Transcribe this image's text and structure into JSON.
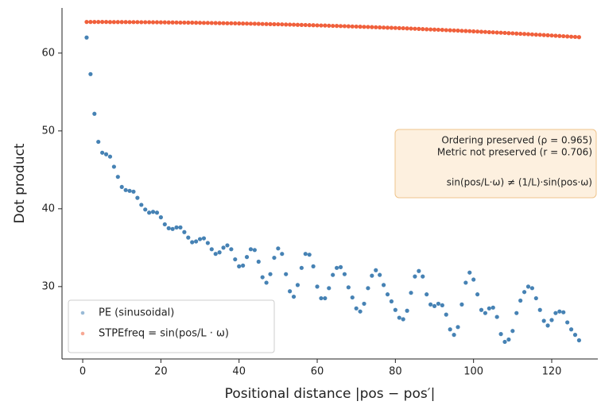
{
  "chart_data": {
    "type": "scatter",
    "xlabel": "Positional distance  |pos − pos′|",
    "ylabel": "Dot product",
    "xlim": [
      -5.3,
      131.8
    ],
    "ylim": [
      20.7,
      65.8
    ],
    "xticks": [
      0,
      20,
      40,
      60,
      80,
      100,
      120
    ],
    "yticks": [
      30,
      40,
      50,
      60
    ],
    "legend_loc": "lower left",
    "annotation": [
      "Ordering preserved (ρ = 0.965)",
      "Metric not preserved (r = 0.706)",
      "sin(pos/L·ω) ≠ (1/L)·sin(pos·ω)"
    ],
    "x": [
      1,
      2,
      3,
      4,
      5,
      6,
      7,
      8,
      9,
      10,
      11,
      12,
      13,
      14,
      15,
      16,
      17,
      18,
      19,
      20,
      21,
      22,
      23,
      24,
      25,
      26,
      27,
      28,
      29,
      30,
      31,
      32,
      33,
      34,
      35,
      36,
      37,
      38,
      39,
      40,
      41,
      42,
      43,
      44,
      45,
      46,
      47,
      48,
      49,
      50,
      51,
      52,
      53,
      54,
      55,
      56,
      57,
      58,
      59,
      60,
      61,
      62,
      63,
      64,
      65,
      66,
      67,
      68,
      69,
      70,
      71,
      72,
      73,
      74,
      75,
      76,
      77,
      78,
      79,
      80,
      81,
      82,
      83,
      84,
      85,
      86,
      87,
      88,
      89,
      90,
      91,
      92,
      93,
      94,
      95,
      96,
      97,
      98,
      99,
      100,
      101,
      102,
      103,
      104,
      105,
      106,
      107,
      108,
      109,
      110,
      111,
      112,
      113,
      114,
      115,
      116,
      117,
      118,
      119,
      120,
      121,
      122,
      123,
      124,
      125,
      126,
      127
    ],
    "series": [
      {
        "name": "PE  (sinusoidal)",
        "color": "#4682b4",
        "values": [
          62,
          57.3,
          52.2,
          48.6,
          47.2,
          47.0,
          46.7,
          45.4,
          44.1,
          42.8,
          42.4,
          42.3,
          42.2,
          41.4,
          40.5,
          39.9,
          39.5,
          39.6,
          39.5,
          38.9,
          38.0,
          37.5,
          37.4,
          37.6,
          37.6,
          37.0,
          36.3,
          35.7,
          35.8,
          36.1,
          36.2,
          35.6,
          34.8,
          34.2,
          34.4,
          35.0,
          35.3,
          34.8,
          33.5,
          32.6,
          32.7,
          33.8,
          34.8,
          34.7,
          33.2,
          31.2,
          30.5,
          31.6,
          33.7,
          34.9,
          34.2,
          31.6,
          29.4,
          28.7,
          30.2,
          32.4,
          34.2,
          34.1,
          32.6,
          30.0,
          28.5,
          28.5,
          29.8,
          31.5,
          32.4,
          32.5,
          31.6,
          29.9,
          28.6,
          27.2,
          26.8,
          27.8,
          29.8,
          31.4,
          32.1,
          31.5,
          30.2,
          29.0,
          28.1,
          27.0,
          26.0,
          25.8,
          26.9,
          29.2,
          31.3,
          32.0,
          31.3,
          29.0,
          27.7,
          27.5,
          27.8,
          27.6,
          26.4,
          24.5,
          23.8,
          24.8,
          27.7,
          30.5,
          31.8,
          30.9,
          29.0,
          27.0,
          26.6,
          27.2,
          27.3,
          26.1,
          23.9,
          22.9,
          23.2,
          24.3,
          26.6,
          28.2,
          29.3,
          30.0,
          29.8,
          28.5,
          27.0,
          25.6,
          25.0,
          25.7,
          26.6,
          26.8,
          26.7,
          25.4,
          24.5,
          23.8,
          23.1
        ]
      },
      {
        "name": "STPEfreq = sin(pos/L · ω)",
        "color": "#f0603c",
        "values": [
          64.0,
          64.0,
          64.0,
          64.0,
          64.0,
          64.0,
          63.99,
          63.99,
          63.99,
          63.99,
          63.99,
          63.98,
          63.98,
          63.98,
          63.97,
          63.97,
          63.97,
          63.96,
          63.96,
          63.95,
          63.95,
          63.94,
          63.94,
          63.93,
          63.92,
          63.92,
          63.91,
          63.91,
          63.9,
          63.89,
          63.88,
          63.88,
          63.87,
          63.86,
          63.85,
          63.84,
          63.83,
          63.83,
          63.82,
          63.81,
          63.8,
          63.79,
          63.78,
          63.77,
          63.76,
          63.74,
          63.73,
          63.72,
          63.71,
          63.7,
          63.69,
          63.67,
          63.66,
          63.65,
          63.63,
          63.62,
          63.61,
          63.59,
          63.58,
          63.56,
          63.55,
          63.54,
          63.52,
          63.5,
          63.49,
          63.47,
          63.46,
          63.44,
          63.42,
          63.41,
          63.39,
          63.37,
          63.36,
          63.34,
          63.32,
          63.3,
          63.28,
          63.26,
          63.25,
          63.23,
          63.21,
          63.19,
          63.17,
          63.15,
          63.13,
          63.11,
          63.08,
          63.06,
          63.04,
          63.02,
          63.0,
          62.98,
          62.95,
          62.93,
          62.91,
          62.89,
          62.86,
          62.84,
          62.82,
          62.79,
          62.77,
          62.74,
          62.72,
          62.69,
          62.67,
          62.64,
          62.62,
          62.59,
          62.56,
          62.54,
          62.51,
          62.48,
          62.46,
          62.43,
          62.4,
          62.37,
          62.35,
          62.32,
          62.29,
          62.26,
          62.23,
          62.2,
          62.17,
          62.14,
          62.11,
          62.08,
          62.05
        ]
      }
    ]
  }
}
